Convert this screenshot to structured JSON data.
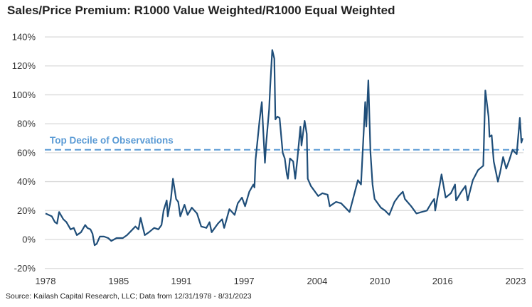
{
  "chart_data": {
    "type": "line",
    "title": "Sales/Price Premium: R1000 Value Weighted/R1000 Equal Weighted",
    "source": "Source: Kailash Capital Research, LLC; Data from 12/31/1978 - 8/31/2023",
    "xlabel": "",
    "ylabel": "",
    "x_ticks": [
      "1978",
      "1985",
      "1991",
      "1997",
      "2004",
      "2010",
      "2016",
      "2023"
    ],
    "y_ticks": [
      "-20%",
      "0%",
      "20%",
      "40%",
      "60%",
      "80%",
      "100%",
      "120%",
      "140%"
    ],
    "ylim": [
      -20,
      140
    ],
    "xlim": [
      1978,
      2023.75
    ],
    "grid": "horizontal",
    "line_color": "#1f4e79",
    "reference_line": {
      "label": "Top Decile of Observations",
      "value": 62,
      "color": "#5b9bd5",
      "style": "dashed"
    },
    "series": [
      {
        "points": [
          [
            1978.0,
            18
          ],
          [
            1978.3,
            17
          ],
          [
            1978.6,
            16
          ],
          [
            1978.9,
            12
          ],
          [
            1979.1,
            11
          ],
          [
            1979.3,
            19
          ],
          [
            1979.7,
            14
          ],
          [
            1980.0,
            12
          ],
          [
            1980.4,
            7
          ],
          [
            1980.7,
            8
          ],
          [
            1981.0,
            3
          ],
          [
            1981.4,
            5
          ],
          [
            1981.8,
            10
          ],
          [
            1982.0,
            8
          ],
          [
            1982.3,
            7
          ],
          [
            1982.5,
            4
          ],
          [
            1982.7,
            -4
          ],
          [
            1982.9,
            -3
          ],
          [
            1983.2,
            2
          ],
          [
            1983.6,
            2
          ],
          [
            1984.0,
            1
          ],
          [
            1984.3,
            -1
          ],
          [
            1984.8,
            1
          ],
          [
            1985.4,
            1
          ],
          [
            1985.8,
            3
          ],
          [
            1986.2,
            6
          ],
          [
            1986.6,
            9
          ],
          [
            1986.9,
            7
          ],
          [
            1987.1,
            15
          ],
          [
            1987.3,
            9
          ],
          [
            1987.5,
            3
          ],
          [
            1987.9,
            5
          ],
          [
            1988.4,
            8
          ],
          [
            1988.8,
            7
          ],
          [
            1989.1,
            10
          ],
          [
            1989.3,
            20
          ],
          [
            1989.6,
            27
          ],
          [
            1989.7,
            16
          ],
          [
            1990.0,
            28
          ],
          [
            1990.2,
            42
          ],
          [
            1990.5,
            28
          ],
          [
            1990.7,
            26
          ],
          [
            1990.9,
            16
          ],
          [
            1991.3,
            24
          ],
          [
            1991.6,
            17
          ],
          [
            1992.0,
            22
          ],
          [
            1992.5,
            18
          ],
          [
            1992.9,
            9
          ],
          [
            1993.4,
            8
          ],
          [
            1993.7,
            12
          ],
          [
            1993.9,
            5
          ],
          [
            1994.5,
            11
          ],
          [
            1994.9,
            14
          ],
          [
            1995.1,
            8
          ],
          [
            1995.6,
            21
          ],
          [
            1996.1,
            17
          ],
          [
            1996.4,
            25
          ],
          [
            1996.8,
            29
          ],
          [
            1997.1,
            23
          ],
          [
            1997.5,
            33
          ],
          [
            1997.9,
            38
          ],
          [
            1998.0,
            36
          ],
          [
            1998.1,
            55
          ],
          [
            1998.5,
            83
          ],
          [
            1998.7,
            95
          ],
          [
            1998.8,
            80
          ],
          [
            1999.0,
            53
          ],
          [
            1999.1,
            65
          ],
          [
            1999.4,
            90
          ],
          [
            1999.5,
            105
          ],
          [
            1999.7,
            131
          ],
          [
            1999.9,
            125
          ],
          [
            2000.0,
            83
          ],
          [
            2000.2,
            85
          ],
          [
            2000.4,
            84
          ],
          [
            2000.7,
            60
          ],
          [
            2000.9,
            56
          ],
          [
            2001.1,
            45
          ],
          [
            2001.2,
            42
          ],
          [
            2001.4,
            56
          ],
          [
            2001.7,
            54
          ],
          [
            2001.9,
            42
          ],
          [
            2002.1,
            55
          ],
          [
            2002.4,
            78
          ],
          [
            2002.5,
            65
          ],
          [
            2002.8,
            82
          ],
          [
            2003.0,
            73
          ],
          [
            2003.1,
            42
          ],
          [
            2003.4,
            37
          ],
          [
            2004.1,
            30
          ],
          [
            2004.5,
            32
          ],
          [
            2005.0,
            31
          ],
          [
            2005.2,
            23
          ],
          [
            2005.8,
            26
          ],
          [
            2006.3,
            25
          ],
          [
            2006.7,
            22
          ],
          [
            2007.1,
            19
          ],
          [
            2007.5,
            30
          ],
          [
            2007.9,
            41
          ],
          [
            2008.2,
            38
          ],
          [
            2008.6,
            95
          ],
          [
            2008.7,
            78
          ],
          [
            2008.9,
            110
          ],
          [
            2009.1,
            60
          ],
          [
            2009.3,
            38
          ],
          [
            2009.5,
            28
          ],
          [
            2010.1,
            22
          ],
          [
            2010.5,
            20
          ],
          [
            2010.9,
            17
          ],
          [
            2011.4,
            26
          ],
          [
            2011.8,
            30
          ],
          [
            2012.2,
            33
          ],
          [
            2012.4,
            28
          ],
          [
            2013.0,
            23
          ],
          [
            2013.5,
            18
          ],
          [
            2014.0,
            19
          ],
          [
            2014.5,
            20
          ],
          [
            2015.0,
            26
          ],
          [
            2015.2,
            28
          ],
          [
            2015.3,
            20
          ],
          [
            2015.9,
            45
          ],
          [
            2016.3,
            29
          ],
          [
            2016.8,
            32
          ],
          [
            2017.2,
            38
          ],
          [
            2017.3,
            27
          ],
          [
            2017.8,
            33
          ],
          [
            2018.2,
            37
          ],
          [
            2018.4,
            27
          ],
          [
            2018.9,
            41
          ],
          [
            2019.4,
            48
          ],
          [
            2019.9,
            51
          ],
          [
            2020.1,
            103
          ],
          [
            2020.4,
            85
          ],
          [
            2020.5,
            71
          ],
          [
            2020.7,
            72
          ],
          [
            2020.9,
            54
          ],
          [
            2021.3,
            40
          ],
          [
            2021.5,
            46
          ],
          [
            2021.8,
            57
          ],
          [
            2022.1,
            49
          ],
          [
            2022.4,
            55
          ],
          [
            2022.7,
            62
          ],
          [
            2023.1,
            59
          ],
          [
            2023.4,
            84
          ],
          [
            2023.55,
            67
          ],
          [
            2023.67,
            70
          ]
        ]
      }
    ]
  }
}
